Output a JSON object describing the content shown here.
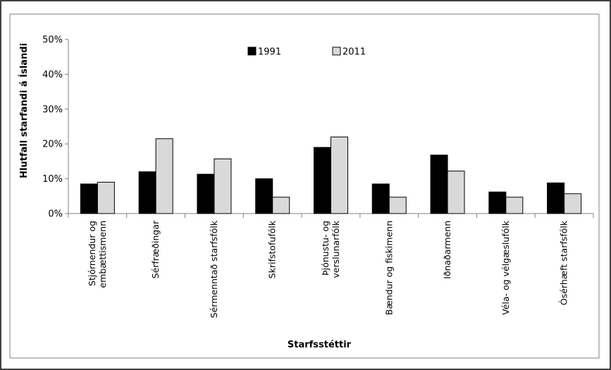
{
  "chart_data": {
    "type": "bar",
    "title": "",
    "xlabel": "Starfsstéttir",
    "ylabel": "Hlutfall starfandi á Íslandi",
    "ylim": [
      0,
      50
    ],
    "yticks": [
      "0%",
      "10%",
      "20%",
      "30%",
      "40%",
      "50%"
    ],
    "grid": false,
    "legend_position": "top-center",
    "categories": [
      [
        "Stjórnendur og",
        "embættismenn"
      ],
      [
        "Sérfræðingar"
      ],
      [
        "Sérmenntað starfsfólk"
      ],
      [
        "Skrifstofufólk"
      ],
      [
        "Þjónustu- og",
        "verslunarfólk"
      ],
      [
        "Bændur og fiskimenn"
      ],
      [
        "Iðnaðarmenn"
      ],
      [
        "Véla- og vélgæslufólk"
      ],
      [
        "Ósérhæft starfsfólk"
      ]
    ],
    "series": [
      {
        "name": "1991",
        "color": "#000000",
        "values": [
          8.5,
          12,
          11.3,
          10,
          19,
          8.5,
          16.8,
          6.2,
          8.8
        ]
      },
      {
        "name": "2011",
        "color": "#d9d9d9",
        "values": [
          9,
          21.5,
          15.7,
          4.7,
          22,
          4.7,
          12.2,
          4.7,
          5.7
        ]
      }
    ]
  }
}
